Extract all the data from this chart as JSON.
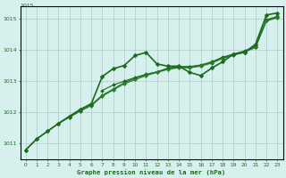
{
  "xlabel": "Graphe pression niveau de la mer (hPa)",
  "x_values": [
    0,
    1,
    2,
    3,
    4,
    5,
    6,
    7,
    8,
    9,
    10,
    11,
    12,
    13,
    14,
    15,
    16,
    17,
    18,
    19,
    20,
    21,
    22,
    23
  ],
  "lines": [
    {
      "y": [
        1010.8,
        1011.15,
        1011.4,
        1011.65,
        1011.85,
        1012.05,
        1012.25,
        1012.55,
        1012.75,
        1012.95,
        1013.1,
        1013.2,
        1013.3,
        1013.4,
        1013.45,
        1013.45,
        1013.5,
        1013.6,
        1013.75,
        1013.85,
        1013.95,
        1014.1,
        1014.95,
        1015.05
      ],
      "color": "#1a6b1a",
      "linewidth": 0.8,
      "marker": "D",
      "markersize": 2.0,
      "zorder": 2
    },
    {
      "y": [
        null,
        null,
        null,
        null,
        null,
        null,
        null,
        1012.7,
        1012.88,
        1013.0,
        1013.12,
        1013.22,
        1013.3,
        1013.42,
        1013.47,
        1013.47,
        1013.52,
        1013.62,
        1013.77,
        1013.87,
        1013.97,
        1014.12,
        1014.97,
        1015.07
      ],
      "color": "#1a6b1a",
      "linewidth": 0.8,
      "marker": "D",
      "markersize": 2.0,
      "zorder": 3
    },
    {
      "y": [
        1010.8,
        1011.15,
        1011.4,
        1011.65,
        1011.88,
        1012.1,
        1012.28,
        1013.15,
        1013.4,
        1013.5,
        1013.82,
        1013.92,
        1013.55,
        1013.48,
        1013.48,
        1013.28,
        1013.18,
        1013.42,
        1013.62,
        1013.87,
        1013.92,
        1014.18,
        1015.12,
        1015.18
      ],
      "color": "#1a6b1a",
      "linewidth": 1.2,
      "marker": "D",
      "markersize": 2.5,
      "zorder": 5
    },
    {
      "y": [
        null,
        null,
        null,
        1011.65,
        1011.85,
        1012.05,
        1012.22,
        1012.52,
        1012.72,
        1012.92,
        1013.05,
        1013.18,
        1013.28,
        1013.38,
        1013.43,
        1013.43,
        1013.48,
        1013.58,
        1013.73,
        1013.83,
        1013.93,
        1014.08,
        1014.93,
        1015.03
      ],
      "color": "#2d7a2d",
      "linewidth": 0.9,
      "marker": "D",
      "markersize": 2.2,
      "zorder": 4
    }
  ],
  "ylim": [
    1010.5,
    1015.4
  ],
  "xlim": [
    -0.5,
    23.5
  ],
  "yticks": [
    1011,
    1012,
    1013,
    1014,
    1015
  ],
  "xticks": [
    0,
    1,
    2,
    3,
    4,
    5,
    6,
    7,
    8,
    9,
    10,
    11,
    12,
    13,
    14,
    15,
    16,
    17,
    18,
    19,
    20,
    21,
    22,
    23
  ],
  "bg_color": "#d6f0ee",
  "plot_bg": "#d6f0ee",
  "grid_color": "#b0c8c8",
  "text_color": "#1a6b1a",
  "border_color": "#888888",
  "top_label": "1015"
}
